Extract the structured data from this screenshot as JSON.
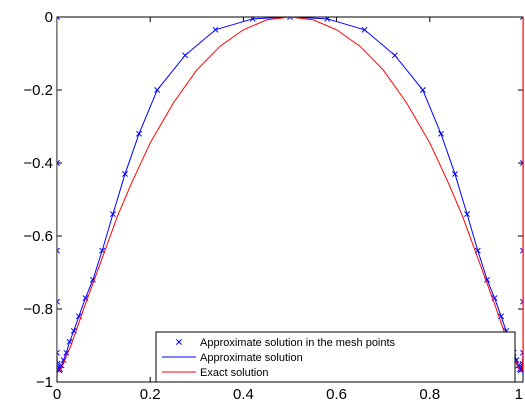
{
  "chart_data": {
    "type": "line",
    "title": "",
    "xlabel": "",
    "ylabel": "",
    "xlim": [
      0,
      1
    ],
    "ylim": [
      -1,
      0
    ],
    "xticks": [
      0,
      0.2,
      0.4,
      0.6,
      0.8,
      1
    ],
    "xtick_labels": [
      "0",
      "0.2",
      "0.4",
      "0.6",
      "0.8",
      "1"
    ],
    "yticks": [
      0,
      -0.2,
      -0.4,
      -0.6,
      -0.8,
      -1
    ],
    "ytick_labels": [
      "0",
      "−0.2",
      "−0.4",
      "−0.6",
      "−0.8",
      "−1"
    ],
    "grid": false,
    "legend_position": "bottom-center",
    "series": [
      {
        "name": "Approximate solution in the mesh points",
        "marker": "x",
        "line": "none",
        "color": "#0000ff",
        "x": [
          0,
          0,
          0,
          0,
          0,
          0.001,
          0.002,
          0.003,
          0.005,
          0.007,
          0.01,
          0.014,
          0.02,
          0.027,
          0.036,
          0.047,
          0.061,
          0.077,
          0.097,
          0.12,
          0.146,
          0.176,
          0.215,
          0.275,
          0.34,
          0.42,
          0.5,
          0.58,
          0.66,
          0.725,
          0.785,
          0.824,
          0.854,
          0.88,
          0.903,
          0.923,
          0.939,
          0.953,
          0.964,
          0.973,
          0.98,
          0.986,
          0.99,
          0.993,
          0.995,
          0.997,
          0.998,
          0.999,
          1,
          1,
          1,
          1,
          1
        ],
        "y": [
          0,
          -0.4,
          -0.64,
          -0.78,
          -0.92,
          -0.95,
          -0.96,
          -0.965,
          -0.968,
          -0.965,
          -0.955,
          -0.94,
          -0.92,
          -0.89,
          -0.86,
          -0.82,
          -0.77,
          -0.72,
          -0.64,
          -0.54,
          -0.43,
          -0.32,
          -0.2,
          -0.105,
          -0.035,
          -0.005,
          0,
          -0.005,
          -0.035,
          -0.105,
          -0.2,
          -0.32,
          -0.43,
          -0.54,
          -0.64,
          -0.72,
          -0.77,
          -0.82,
          -0.86,
          -0.89,
          -0.92,
          -0.94,
          -0.955,
          -0.965,
          -0.968,
          -0.965,
          -0.96,
          -0.95,
          -0.92,
          -0.78,
          -0.64,
          -0.4,
          0
        ]
      },
      {
        "name": "Approximate solution",
        "marker": "none",
        "line": "solid",
        "color": "#0000ff",
        "x": [
          0,
          0,
          0,
          0,
          0,
          0.001,
          0.002,
          0.003,
          0.005,
          0.007,
          0.01,
          0.014,
          0.02,
          0.027,
          0.036,
          0.047,
          0.061,
          0.077,
          0.097,
          0.12,
          0.146,
          0.176,
          0.215,
          0.275,
          0.34,
          0.42,
          0.5,
          0.58,
          0.66,
          0.725,
          0.785,
          0.824,
          0.854,
          0.88,
          0.903,
          0.923,
          0.939,
          0.953,
          0.964,
          0.973,
          0.98,
          0.986,
          0.99,
          0.993,
          0.995,
          0.997,
          0.998,
          0.999,
          1,
          1,
          1,
          1,
          1
        ],
        "y": [
          0,
          -0.4,
          -0.64,
          -0.78,
          -0.92,
          -0.95,
          -0.96,
          -0.965,
          -0.968,
          -0.965,
          -0.955,
          -0.94,
          -0.92,
          -0.89,
          -0.86,
          -0.82,
          -0.77,
          -0.72,
          -0.64,
          -0.54,
          -0.43,
          -0.32,
          -0.2,
          -0.105,
          -0.035,
          -0.005,
          0,
          -0.005,
          -0.035,
          -0.105,
          -0.2,
          -0.32,
          -0.43,
          -0.54,
          -0.64,
          -0.72,
          -0.77,
          -0.82,
          -0.86,
          -0.89,
          -0.92,
          -0.94,
          -0.955,
          -0.965,
          -0.968,
          -0.965,
          -0.96,
          -0.95,
          -0.92,
          -0.78,
          -0.64,
          -0.4,
          0
        ]
      },
      {
        "name": "Exact solution",
        "marker": "none",
        "line": "solid",
        "color": "#ff0000",
        "x": [
          0,
          0,
          0,
          0,
          0.001,
          0.002,
          0.004,
          0.006,
          0.009,
          0.013,
          0.02,
          0.03,
          0.045,
          0.06,
          0.08,
          0.1,
          0.13,
          0.16,
          0.2,
          0.25,
          0.3,
          0.35,
          0.4,
          0.45,
          0.5,
          0.55,
          0.6,
          0.65,
          0.7,
          0.75,
          0.8,
          0.84,
          0.87,
          0.9,
          0.92,
          0.94,
          0.955,
          0.97,
          0.98,
          0.987,
          0.991,
          0.994,
          0.996,
          0.998,
          0.999,
          1,
          1,
          1,
          1
        ],
        "y": [
          0,
          -0.5,
          -0.8,
          -0.93,
          -0.96,
          -0.97,
          -0.972,
          -0.97,
          -0.962,
          -0.95,
          -0.93,
          -0.9,
          -0.845,
          -0.79,
          -0.72,
          -0.65,
          -0.545,
          -0.455,
          -0.345,
          -0.235,
          -0.145,
          -0.08,
          -0.035,
          -0.008,
          0,
          -0.008,
          -0.035,
          -0.08,
          -0.145,
          -0.235,
          -0.345,
          -0.455,
          -0.545,
          -0.65,
          -0.72,
          -0.79,
          -0.845,
          -0.9,
          -0.93,
          -0.95,
          -0.962,
          -0.97,
          -0.972,
          -0.97,
          -0.96,
          -0.93,
          -0.8,
          -0.5,
          0
        ]
      }
    ]
  }
}
